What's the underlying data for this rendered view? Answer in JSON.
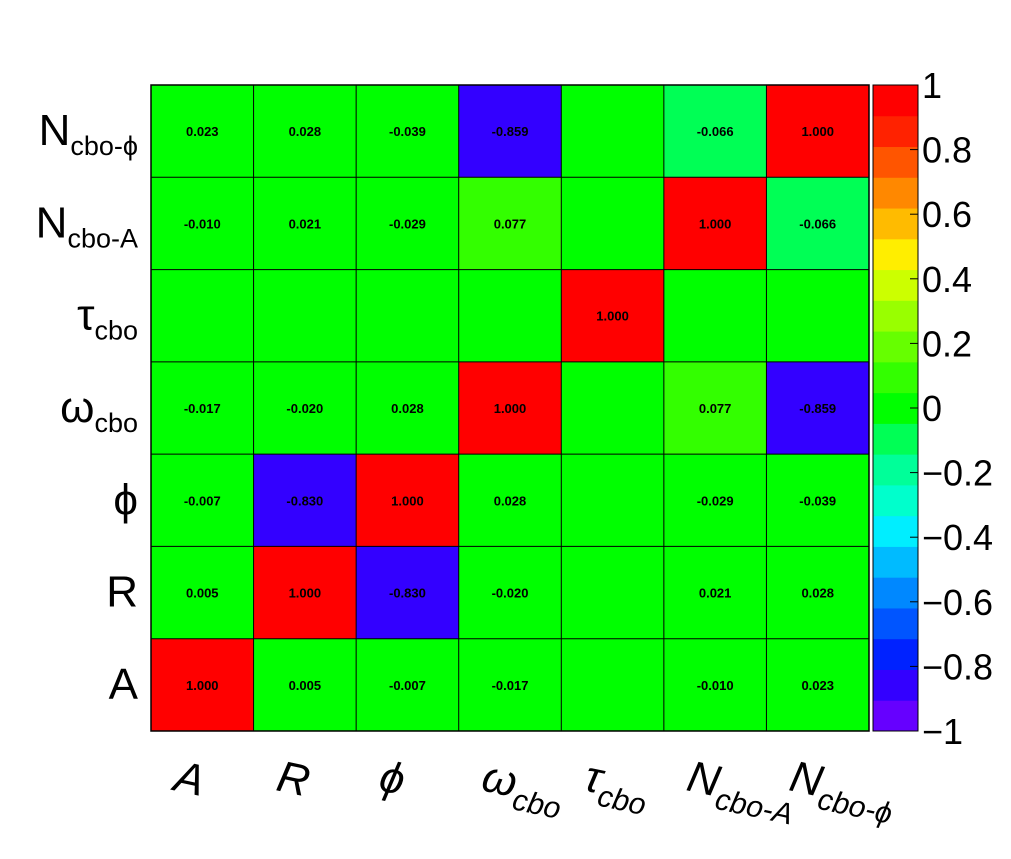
{
  "chart_data": {
    "type": "heatmap",
    "x_labels": [
      {
        "main": "A",
        "sub": ""
      },
      {
        "main": "R",
        "sub": ""
      },
      {
        "main": "ϕ",
        "sub": ""
      },
      {
        "main": "ω",
        "sub": "cbo"
      },
      {
        "main": "τ",
        "sub": "cbo"
      },
      {
        "main": "N",
        "sub": "cbo-A"
      },
      {
        "main": "N",
        "sub": "cbo-ϕ"
      }
    ],
    "y_labels": [
      {
        "main": "A",
        "sub": ""
      },
      {
        "main": "R",
        "sub": ""
      },
      {
        "main": "ϕ",
        "sub": ""
      },
      {
        "main": "ω",
        "sub": "cbo"
      },
      {
        "main": "τ",
        "sub": "cbo"
      },
      {
        "main": "N",
        "sub": "cbo-A"
      },
      {
        "main": "N",
        "sub": "cbo-ϕ"
      }
    ],
    "matrix": [
      [
        1.0,
        0.005,
        -0.007,
        -0.017,
        null,
        -0.01,
        0.023
      ],
      [
        0.005,
        1.0,
        -0.83,
        -0.02,
        null,
        0.021,
        0.028
      ],
      [
        -0.007,
        -0.83,
        1.0,
        0.028,
        null,
        -0.029,
        -0.039
      ],
      [
        -0.017,
        -0.02,
        0.028,
        1.0,
        null,
        0.077,
        -0.859
      ],
      [
        null,
        null,
        null,
        null,
        1.0,
        null,
        null
      ],
      [
        -0.01,
        0.021,
        -0.029,
        0.077,
        null,
        1.0,
        -0.066
      ],
      [
        0.023,
        0.028,
        -0.039,
        -0.859,
        null,
        -0.066,
        1.0
      ]
    ],
    "matrix_note_row_order": "bottom-to-top",
    "zlim": [
      -1,
      1
    ],
    "z_ticks": [
      "1",
      "0.8",
      "0.6",
      "0.4",
      "0.2",
      "0",
      "−0.2",
      "−0.4",
      "−0.6",
      "−0.8",
      "−1"
    ],
    "palette": [
      "#6600ff",
      "#3300ff",
      "#0022ff",
      "#0055ff",
      "#0088ff",
      "#00bbff",
      "#00eeff",
      "#00ffcc",
      "#00ff99",
      "#00ff55",
      "#00ff00",
      "#33ff00",
      "#66ff00",
      "#99ff00",
      "#ccff00",
      "#ffee00",
      "#ffbb00",
      "#ff8800",
      "#ff5500",
      "#ff2200",
      "#ff0000"
    ],
    "empty_cell_color": "#00ff00",
    "grid": true
  }
}
